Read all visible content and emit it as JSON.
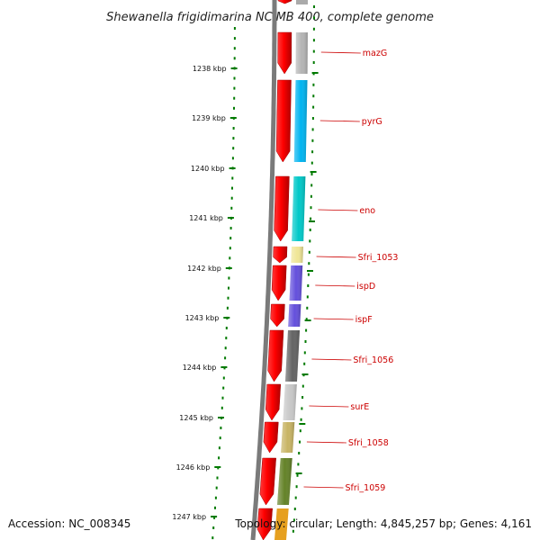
{
  "title": "Shewanella frigidimarina NCIMB 400, complete genome",
  "footer": {
    "accession": "Accession: NC_008345",
    "topology": "Topology: circular; Length: 4,845,257 bp; Genes: 4,161"
  },
  "colors": {
    "backbone": "#7a7a7a",
    "forward_arrow": "#ff0000",
    "tick": "#007a00",
    "label": "#cc0000"
  },
  "kbp_labels": [
    "1238 kbp",
    "1239 kbp",
    "1240 kbp",
    "1241 kbp",
    "1242 kbp",
    "1243 kbp",
    "1244 kbp",
    "1245 kbp",
    "1246 kbp",
    "1247 kbp"
  ],
  "genes": [
    {
      "name": "mazG",
      "color": "#b4b4b4"
    },
    {
      "name": "pyrG",
      "color": "#00b4f0"
    },
    {
      "name": "eno",
      "color": "#00c8c8"
    },
    {
      "name": "Sfri_1053",
      "color": "#f0e696"
    },
    {
      "name": "ispD",
      "color": "#6450dc"
    },
    {
      "name": "ispF",
      "color": "#6450dc"
    },
    {
      "name": "Sfri_1056",
      "color": "#646464"
    },
    {
      "name": "surE",
      "color": "#c8c8c8"
    },
    {
      "name": "Sfri_1058",
      "color": "#c8b464"
    },
    {
      "name": "Sfri_1059",
      "color": "#648228"
    }
  ]
}
